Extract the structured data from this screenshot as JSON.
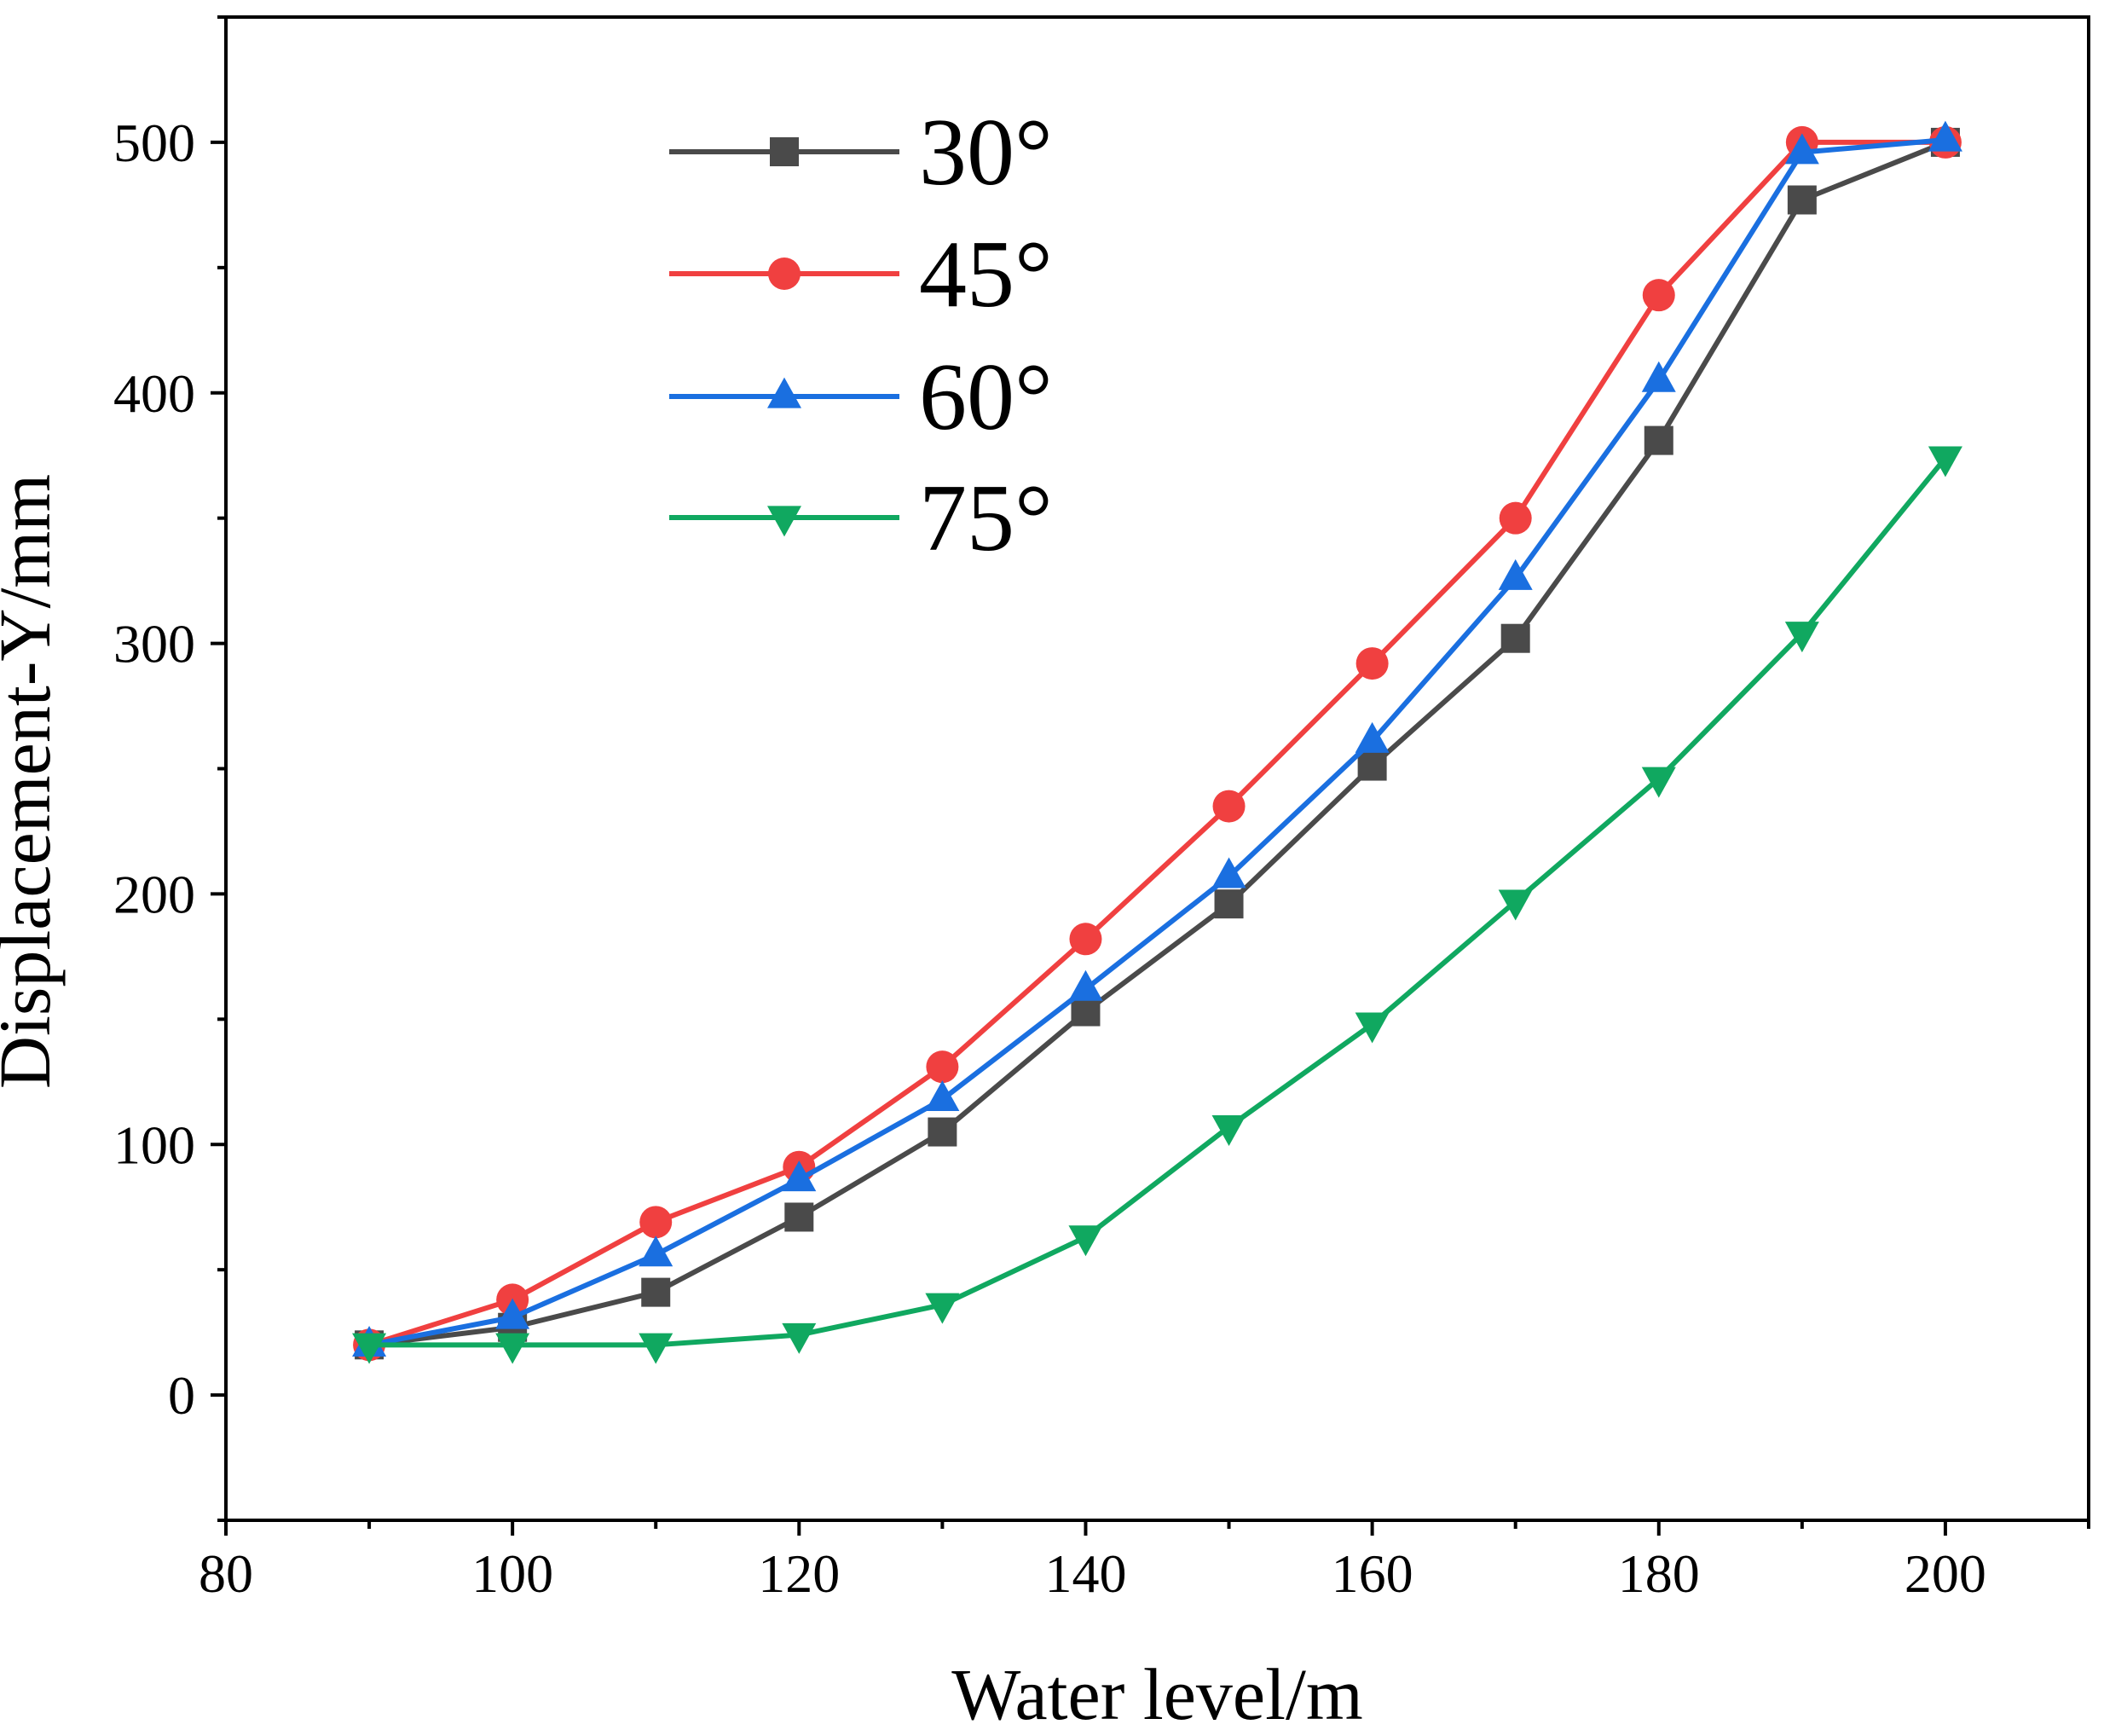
{
  "chart_data": {
    "type": "line",
    "xlabel": "Water level/m",
    "ylabel": "Displacement-Y/mm",
    "xlim": [
      80,
      210
    ],
    "ylim": [
      -50,
      550
    ],
    "xticks": [
      80,
      100,
      120,
      140,
      160,
      180,
      200
    ],
    "yticks": [
      0,
      100,
      200,
      300,
      400,
      500
    ],
    "x": [
      90,
      100,
      110,
      120,
      130,
      140,
      150,
      160,
      170,
      180,
      190,
      200
    ],
    "legend_position": "top-left",
    "grid": false,
    "series": [
      {
        "name": "30°",
        "color": "#4a4a4a",
        "marker": "square",
        "values": [
          20,
          27,
          41,
          71,
          105,
          153,
          196,
          251,
          302,
          381,
          477,
          500
        ]
      },
      {
        "name": "45°",
        "color": "#f04040",
        "marker": "circle",
        "values": [
          20,
          38,
          69,
          91,
          131,
          182,
          235,
          292,
          350,
          439,
          500,
          500
        ]
      },
      {
        "name": "60°",
        "color": "#1a6fe0",
        "marker": "triangle-up",
        "values": [
          20,
          31,
          56,
          86,
          118,
          162,
          207,
          261,
          326,
          405,
          496,
          501
        ]
      },
      {
        "name": "75°",
        "color": "#10a860",
        "marker": "triangle-down",
        "values": [
          20,
          20,
          20,
          24,
          36,
          63,
          107,
          148,
          197,
          246,
          304,
          374
        ]
      }
    ]
  }
}
